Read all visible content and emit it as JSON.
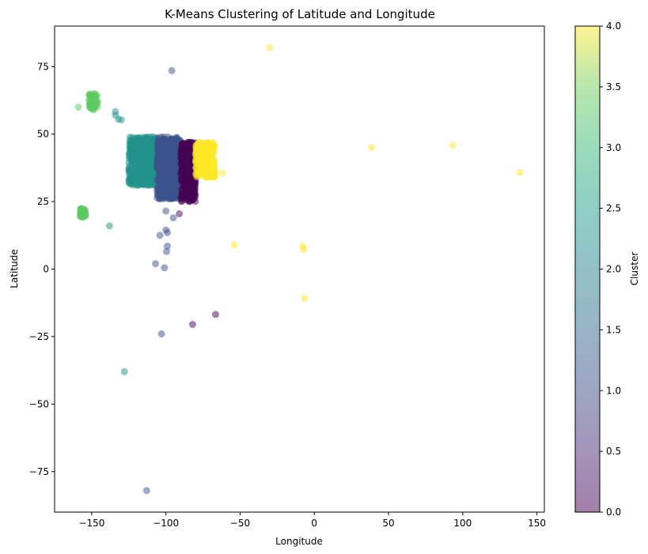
{
  "chart_data": {
    "type": "scatter",
    "title": "K-Means Clustering of Latitude and Longitude",
    "xlabel": "Longitude",
    "ylabel": "Latitude",
    "xlim": [
      -175,
      155
    ],
    "ylim": [
      -90,
      90
    ],
    "x_ticks": [
      -150,
      -100,
      -50,
      0,
      50,
      100,
      150
    ],
    "y_ticks": [
      -75,
      -50,
      -25,
      0,
      25,
      50,
      75
    ],
    "grid": false,
    "point_alpha": 0.5,
    "colorbar": {
      "label": "Cluster",
      "range": [
        0.0,
        4.0
      ],
      "ticks": [
        "0.0",
        "0.5",
        "1.0",
        "1.5",
        "2.0",
        "2.5",
        "3.0",
        "3.5",
        "4.0"
      ],
      "colormap": "viridis"
    },
    "cluster_colors": {
      "0": "#440154",
      "1": "#3b528b",
      "2": "#21918c",
      "3": "#5ec962",
      "4": "#fde725"
    },
    "dense_regions": [
      {
        "cluster": 2,
        "lon": [
          -125,
          -106
        ],
        "lat": [
          31,
          49
        ]
      },
      {
        "cluster": 1,
        "lon": [
          -106,
          -90
        ],
        "lat": [
          26,
          49
        ]
      },
      {
        "cluster": 0,
        "lon": [
          -90,
          -80
        ],
        "lat": [
          25,
          47
        ]
      },
      {
        "cluster": 4,
        "lon": [
          -80,
          -67
        ],
        "lat": [
          34,
          47
        ]
      },
      {
        "cluster": 3,
        "lon": [
          -158,
          -154
        ],
        "lat": [
          19,
          22.5
        ]
      },
      {
        "cluster": 3,
        "lon": [
          -152,
          -146
        ],
        "lat": [
          59,
          65
        ]
      }
    ],
    "points": [
      {
        "x": -96,
        "y": 73.5,
        "cluster": 1
      },
      {
        "x": -30,
        "y": 82,
        "cluster": 4
      },
      {
        "x": -159,
        "y": 60,
        "cluster": 3
      },
      {
        "x": -150,
        "y": 60,
        "cluster": 3
      },
      {
        "x": -148,
        "y": 65,
        "cluster": 3
      },
      {
        "x": -146,
        "y": 62,
        "cluster": 3
      },
      {
        "x": -134,
        "y": 58.3,
        "cluster": 2
      },
      {
        "x": -134,
        "y": 57,
        "cluster": 2
      },
      {
        "x": -132,
        "y": 55.5,
        "cluster": 2
      },
      {
        "x": -130,
        "y": 55.3,
        "cluster": 2
      },
      {
        "x": -62,
        "y": 35.5,
        "cluster": 4
      },
      {
        "x": 38.5,
        "y": 45,
        "cluster": 4
      },
      {
        "x": 93.5,
        "y": 45.8,
        "cluster": 4
      },
      {
        "x": 138.5,
        "y": 35.8,
        "cluster": 4
      },
      {
        "x": -100,
        "y": 21.5,
        "cluster": 1
      },
      {
        "x": -95,
        "y": 19,
        "cluster": 1
      },
      {
        "x": -91,
        "y": 20.5,
        "cluster": 0
      },
      {
        "x": -138,
        "y": 16,
        "cluster": 2
      },
      {
        "x": -100,
        "y": 14.5,
        "cluster": 1
      },
      {
        "x": -99,
        "y": 13.5,
        "cluster": 1
      },
      {
        "x": -104,
        "y": 12.5,
        "cluster": 1
      },
      {
        "x": -54,
        "y": 9,
        "cluster": 4
      },
      {
        "x": -99,
        "y": 8.5,
        "cluster": 1
      },
      {
        "x": -8,
        "y": 8.5,
        "cluster": 4
      },
      {
        "x": -7,
        "y": 7.3,
        "cluster": 4
      },
      {
        "x": -99.5,
        "y": 6.5,
        "cluster": 1
      },
      {
        "x": -107,
        "y": 2,
        "cluster": 1
      },
      {
        "x": -101,
        "y": 0.5,
        "cluster": 1
      },
      {
        "x": -6.5,
        "y": -10.8,
        "cluster": 4
      },
      {
        "x": -66.5,
        "y": -16.8,
        "cluster": 0
      },
      {
        "x": -82,
        "y": -20.5,
        "cluster": 0
      },
      {
        "x": -103,
        "y": -24,
        "cluster": 1
      },
      {
        "x": -128,
        "y": -38,
        "cluster": 2
      },
      {
        "x": -113,
        "y": -82,
        "cluster": 1
      }
    ]
  }
}
